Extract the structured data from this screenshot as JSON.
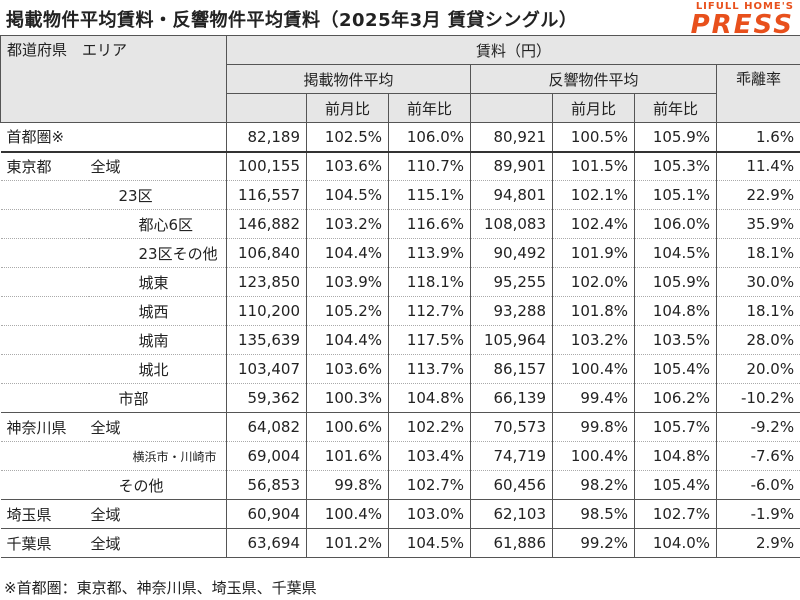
{
  "title": "掲載物件平均賃料・反響物件平均賃料（2025年3月 賃貸シングル）",
  "logo": {
    "top": "LIFULL HOME'S",
    "bottom": "PRESS"
  },
  "header": {
    "region": "都道府県　エリア",
    "rent": "賃料（円）",
    "listed": "掲載物件平均",
    "response": "反響物件平均",
    "divergence": "乖離率",
    "mom": "前月比",
    "yoy": "前年比"
  },
  "rows": [
    {
      "pref": "首都圏※",
      "area": "",
      "c": [
        "82,189",
        "102.5%",
        "106.0%",
        "80,921",
        "100.5%",
        "105.9%",
        "1.6%"
      ]
    },
    {
      "pref": "東京都",
      "area": "全域",
      "c": [
        "100,155",
        "103.6%",
        "110.7%",
        "89,901",
        "101.5%",
        "105.3%",
        "11.4%"
      ]
    },
    {
      "pref": "",
      "area": "23区",
      "c": [
        "116,557",
        "104.5%",
        "115.1%",
        "94,801",
        "102.1%",
        "105.1%",
        "22.9%"
      ]
    },
    {
      "pref": "",
      "area": "都心6区",
      "c": [
        "146,882",
        "103.2%",
        "116.6%",
        "108,083",
        "102.4%",
        "106.0%",
        "35.9%"
      ]
    },
    {
      "pref": "",
      "area": "23区その他",
      "c": [
        "106,840",
        "104.4%",
        "113.9%",
        "90,492",
        "101.9%",
        "104.5%",
        "18.1%"
      ]
    },
    {
      "pref": "",
      "area": "城東",
      "c": [
        "123,850",
        "103.9%",
        "118.1%",
        "95,255",
        "102.0%",
        "105.9%",
        "30.0%"
      ]
    },
    {
      "pref": "",
      "area": "城西",
      "c": [
        "110,200",
        "105.2%",
        "112.7%",
        "93,288",
        "101.8%",
        "104.8%",
        "18.1%"
      ]
    },
    {
      "pref": "",
      "area": "城南",
      "c": [
        "135,639",
        "104.4%",
        "117.5%",
        "105,964",
        "103.2%",
        "103.5%",
        "28.0%"
      ]
    },
    {
      "pref": "",
      "area": "城北",
      "c": [
        "103,407",
        "103.6%",
        "113.7%",
        "86,157",
        "100.4%",
        "105.4%",
        "20.0%"
      ]
    },
    {
      "pref": "",
      "area": "市部",
      "c": [
        "59,362",
        "100.3%",
        "104.8%",
        "66,139",
        "99.4%",
        "106.2%",
        "-10.2%"
      ]
    },
    {
      "pref": "神奈川県",
      "area": "全域",
      "c": [
        "64,082",
        "100.6%",
        "102.2%",
        "70,573",
        "99.8%",
        "105.7%",
        "-9.2%"
      ]
    },
    {
      "pref": "",
      "area": "横浜市・川崎市",
      "c": [
        "69,004",
        "101.6%",
        "103.4%",
        "74,719",
        "100.4%",
        "104.8%",
        "-7.6%"
      ]
    },
    {
      "pref": "",
      "area": "その他",
      "c": [
        "56,853",
        "99.8%",
        "102.7%",
        "60,456",
        "98.2%",
        "105.4%",
        "-6.0%"
      ]
    },
    {
      "pref": "埼玉県",
      "area": "全域",
      "c": [
        "60,904",
        "100.4%",
        "103.0%",
        "62,103",
        "98.5%",
        "102.7%",
        "-1.9%"
      ]
    },
    {
      "pref": "千葉県",
      "area": "全域",
      "c": [
        "63,694",
        "101.2%",
        "104.5%",
        "61,886",
        "99.2%",
        "104.0%",
        "2.9%"
      ]
    }
  ],
  "footnote": "※首都圏：東京都、神奈川県、埼玉県、千葉県"
}
